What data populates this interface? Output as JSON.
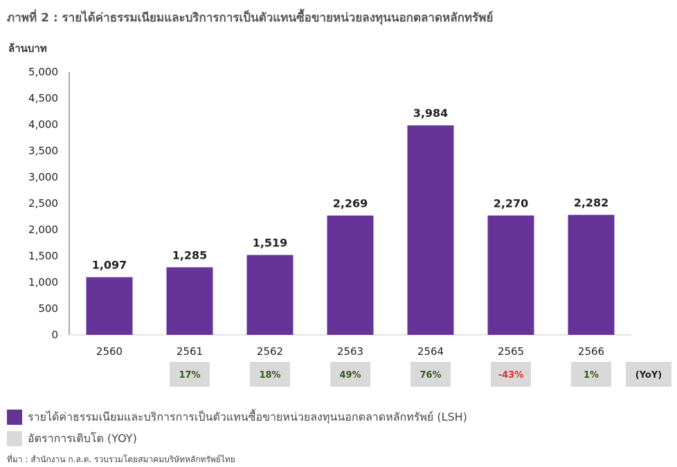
{
  "title": "ภาพที่ 2 : รายได้ค่าธรรมเนียมและบริการการเป็นตัวแทนซื้อขายหน่วยลงทุนนอกตลาดหลักทรัพย์",
  "unit": "ล้านบาท",
  "source": "ที่มา : สำนักงาน ก.ล.ต. รวบรวมโดยสมาคมบริษัทหลักทรัพย์ไทย",
  "colors": {
    "bar": "#663399",
    "badge": "#d9d9d9",
    "positive": "#375623",
    "negative": "#e03030"
  },
  "chart_data": {
    "type": "bar",
    "categories": [
      "2560",
      "2561",
      "2562",
      "2563",
      "2564",
      "2565",
      "2566"
    ],
    "series": [
      {
        "name": "รายได้ค่าธรรมเนียมและบริการการเป็นตัวแทนซื้อขายหน่วยลงทุนนอกตลาดหลักทรัพย์ (LSH)",
        "values": [
          1097,
          1285,
          1519,
          2269,
          3984,
          2270,
          2282
        ],
        "labels": [
          "1,097",
          "1,285",
          "1,519",
          "2,269",
          "3,984",
          "2,270",
          "2,282"
        ]
      }
    ],
    "yoy": {
      "name": "อัตราการเติบโต (YOY)",
      "axis_label": "(YoY)",
      "values": [
        null,
        "17%",
        "18%",
        "49%",
        "76%",
        "-43%",
        "1%"
      ]
    },
    "ylim": [
      0,
      5000
    ],
    "yticks": [
      "0",
      "500",
      "1,000",
      "1,500",
      "2,000",
      "2,500",
      "3,000",
      "3,500",
      "4,000",
      "4,500",
      "5,000"
    ],
    "legend_position": "bottom-left",
    "grid": false
  }
}
